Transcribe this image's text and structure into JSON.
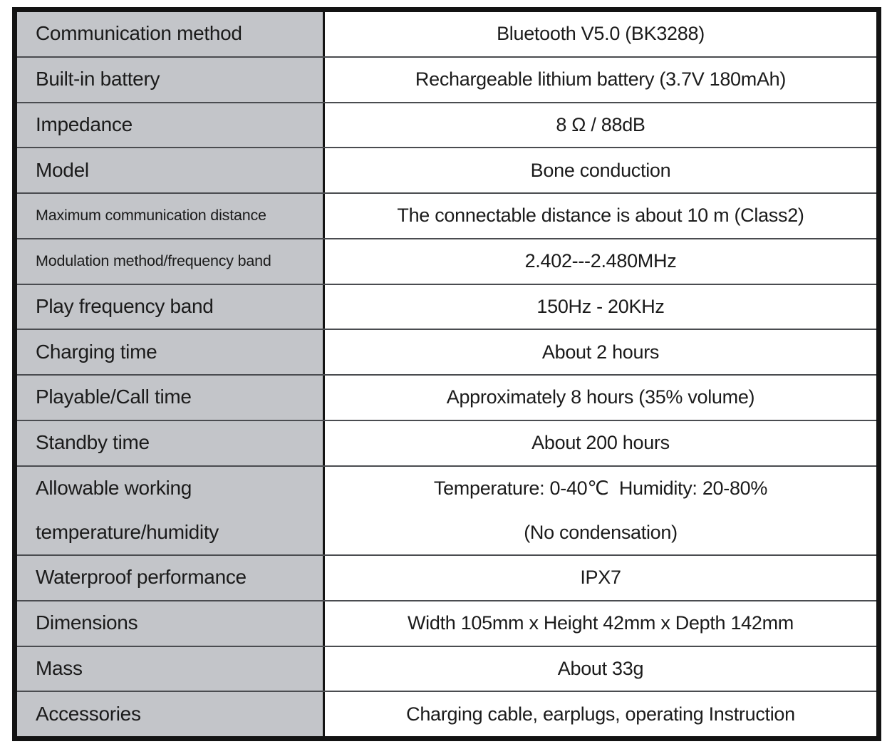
{
  "table": {
    "rows": [
      {
        "label": "Communication method",
        "value": "Bluetooth V5.0 (BK3288)"
      },
      {
        "label": "Built-in battery",
        "value": "Rechargeable lithium battery (3.7V 180mAh)"
      },
      {
        "label": "Impedance",
        "value": "8 Ω / 88dB"
      },
      {
        "label": "Model",
        "value": "Bone conduction"
      },
      {
        "label": "Maximum communication distance",
        "value": "The connectable distance is about 10 m (Class2)"
      },
      {
        "label": "Modulation method/frequency band",
        "value": "2.402---2.480MHz"
      },
      {
        "label": "Play frequency band",
        "value": "150Hz - 20KHz"
      },
      {
        "label": "Charging time",
        "value": "About 2 hours"
      },
      {
        "label": "Playable/Call time",
        "value": "Approximately 8 hours (35% volume)"
      },
      {
        "label": "Standby time",
        "value": "About 200 hours"
      },
      {
        "label_line1": "Allowable working",
        "label_line2": "temperature/humidity",
        "value_line1": "Temperature: 0-40℃  Humidity: 20-80%",
        "value_line2": "(No condensation)"
      },
      {
        "label": "Waterproof performance",
        "value": "IPX7"
      },
      {
        "label": "Dimensions",
        "value": "Width 105mm x Height 42mm x Depth 142mm"
      },
      {
        "label": "Mass",
        "value": "About 33g"
      },
      {
        "label": "Accessories",
        "value": "Charging cable, earplugs, operating Instruction"
      }
    ],
    "colors": {
      "label_bg": "#c3c5c9",
      "value_bg": "#ffffff",
      "outer_border": "#131313",
      "row_line": "#4a4c50",
      "text": "#1b1b1b"
    }
  }
}
